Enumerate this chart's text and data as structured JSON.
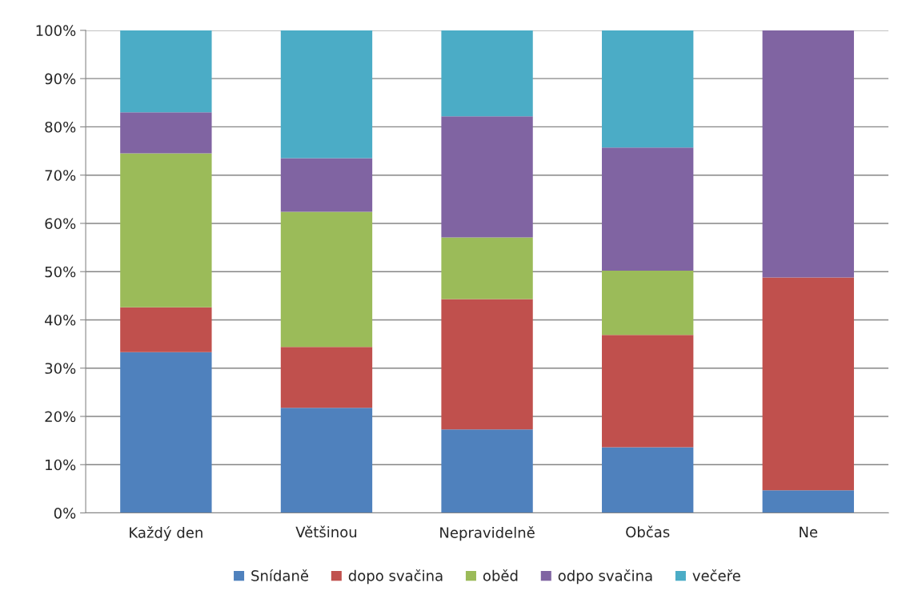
{
  "chart_data": {
    "type": "bar",
    "stacked": true,
    "categories": [
      "Každý den",
      "Většinou",
      "Nepravidelně",
      "Občas",
      "Ne"
    ],
    "series": [
      {
        "name": "Snídaně",
        "color": "#4f81bd",
        "values": [
          33.3,
          21.8,
          17.3,
          13.6,
          4.7
        ]
      },
      {
        "name": "dopo svačina",
        "color": "#c0504d",
        "values": [
          9.3,
          12.6,
          27.0,
          23.3,
          44.1
        ]
      },
      {
        "name": "oběd",
        "color": "#9bbb59",
        "values": [
          31.9,
          28.0,
          12.8,
          13.3,
          0
        ]
      },
      {
        "name": "odpo svačina",
        "color": "#8064a2",
        "values": [
          8.5,
          11.1,
          25.1,
          25.5,
          51.2
        ]
      },
      {
        "name": "večeře",
        "color": "#4bacc6",
        "values": [
          17.0,
          26.5,
          17.8,
          24.3,
          0
        ]
      }
    ],
    "ylim": [
      0,
      100
    ],
    "yticks": [
      {
        "value": 0,
        "label": "0%"
      },
      {
        "value": 10,
        "label": "10%"
      },
      {
        "value": 20,
        "label": "20%"
      },
      {
        "value": 30,
        "label": "30%"
      },
      {
        "value": 40,
        "label": "40%"
      },
      {
        "value": 50,
        "label": "50%"
      },
      {
        "value": 60,
        "label": "60%"
      },
      {
        "value": 70,
        "label": "70%"
      },
      {
        "value": 80,
        "label": "80%"
      },
      {
        "value": 90,
        "label": "90%"
      },
      {
        "value": 100,
        "label": "100%"
      }
    ],
    "grid": "y",
    "legend": "bottom"
  }
}
